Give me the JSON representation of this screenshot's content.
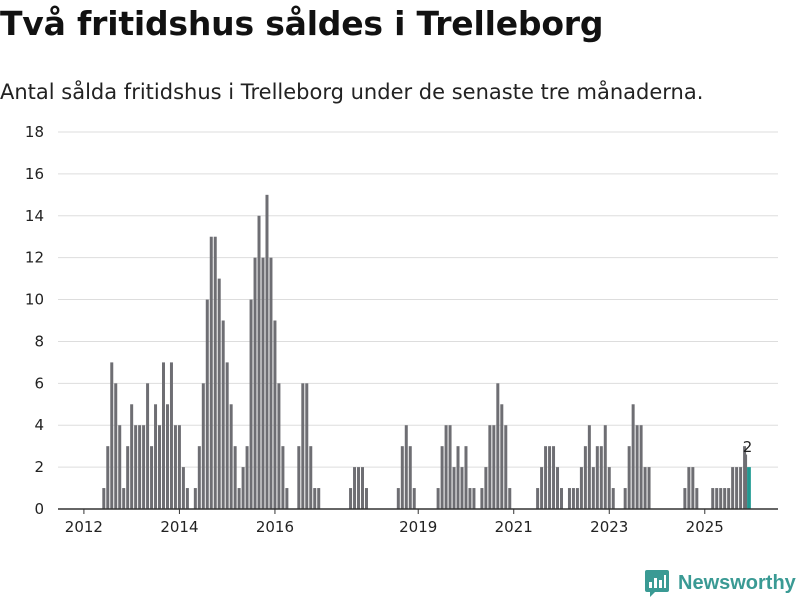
{
  "header": {
    "title": "Två fritidshus såldes i Trelleborg",
    "subtitle": "Antal sålda fritidshus i Trelleborg under de senaste tre månaderna."
  },
  "branding": {
    "name": "Newsworthy",
    "color": "#3a9a94",
    "icon": "newsworthy-logo-icon"
  },
  "colors": {
    "bar": "#6e6e73",
    "highlight": "#1f9a92",
    "grid": "#dddddd",
    "axis": "#333333"
  },
  "chart_data": {
    "type": "bar",
    "title": "Två fritidshus såldes i Trelleborg",
    "subtitle": "Antal sålda fritidshus i Trelleborg under de senaste tre månaderna.",
    "xlabel": "",
    "ylabel": "",
    "ylim": [
      0,
      18
    ],
    "yticks": [
      0,
      2,
      4,
      6,
      8,
      10,
      12,
      14,
      16,
      18
    ],
    "grid": true,
    "x_unit": "month",
    "x_start": "2011-08",
    "x_tick_labels": [
      {
        "label": "2012",
        "month_index": 5
      },
      {
        "label": "2014",
        "month_index": 29
      },
      {
        "label": "2016",
        "month_index": 53
      },
      {
        "label": "2019",
        "month_index": 89
      },
      {
        "label": "2021",
        "month_index": 113
      },
      {
        "label": "2023",
        "month_index": 137
      },
      {
        "label": "2025",
        "month_index": 161
      }
    ],
    "values": [
      0,
      0,
      0,
      0,
      0,
      0,
      0,
      0,
      0,
      0,
      1,
      3,
      7,
      6,
      4,
      1,
      3,
      5,
      4,
      4,
      4,
      6,
      3,
      5,
      4,
      7,
      5,
      7,
      4,
      4,
      2,
      1,
      0,
      1,
      3,
      6,
      10,
      13,
      13,
      11,
      9,
      7,
      5,
      3,
      1,
      2,
      3,
      10,
      12,
      14,
      12,
      15,
      12,
      9,
      6,
      3,
      1,
      0,
      0,
      3,
      6,
      6,
      3,
      1,
      1,
      0,
      0,
      0,
      0,
      0,
      0,
      0,
      1,
      2,
      2,
      2,
      1,
      0,
      0,
      0,
      0,
      0,
      0,
      0,
      1,
      3,
      4,
      3,
      1,
      0,
      0,
      0,
      0,
      0,
      1,
      3,
      4,
      4,
      2,
      3,
      2,
      3,
      1,
      1,
      0,
      1,
      2,
      4,
      4,
      6,
      5,
      4,
      1,
      0,
      0,
      0,
      0,
      0,
      0,
      1,
      2,
      3,
      3,
      3,
      2,
      1,
      0,
      1,
      1,
      1,
      2,
      3,
      4,
      2,
      3,
      3,
      4,
      2,
      1,
      0,
      0,
      1,
      3,
      5,
      4,
      4,
      2,
      2,
      0,
      0,
      0,
      0,
      0,
      0,
      0,
      0,
      1,
      2,
      2,
      1,
      0,
      0,
      0,
      1,
      1,
      1,
      1,
      1,
      2,
      2,
      2,
      3,
      2
    ],
    "highlight_index": 172,
    "highlight_label": "2",
    "extra_bar": {
      "month_index": 171,
      "value": 2.6
    }
  }
}
